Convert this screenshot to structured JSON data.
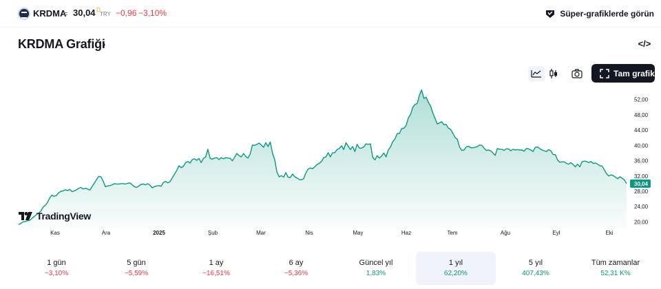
{
  "header": {
    "symbol": "KRDMA",
    "separator": "=",
    "price": "30,04",
    "price_flag": "D",
    "currency": "TRY",
    "change": "−0,96",
    "change_pct": "−3,10%",
    "super_link": "Süper-grafiklerde görün"
  },
  "title": "KRDMA Grafiği",
  "title_chevron": "›",
  "embed_label": "</>",
  "toolbar": {
    "full_chart": "Tam grafik"
  },
  "watermark": "TradingView",
  "colors": {
    "line": "#089981",
    "negative": "#f23645",
    "positive": "#089981",
    "price_label_bg": "#089981"
  },
  "chart_data": {
    "type": "area",
    "last_price_label": "30,04",
    "y_ticks": [
      "52,00",
      "48,00",
      "44,00",
      "40,00",
      "36,00",
      "32,00",
      "28,00",
      "24,00",
      "20,00"
    ],
    "y_tick_values": [
      52,
      48,
      44,
      40,
      36,
      32,
      28,
      24,
      20
    ],
    "x_ticks": [
      "Kas",
      "Ara",
      "2025",
      "Şub",
      "Mar",
      "Nis",
      "May",
      "Haz",
      "Tem",
      "Ağu",
      "Eyl",
      "Eki"
    ],
    "ylim": [
      19,
      55
    ],
    "grid": false,
    "values": [
      19.3,
      19.6,
      20.0,
      20.1,
      20.3,
      20.4,
      20.9,
      21.4,
      21.9,
      22.3,
      22.8,
      23.9,
      24.3,
      25.1,
      26.3,
      27.0,
      26.7,
      26.9,
      27.6,
      28.0,
      28.1,
      28.4,
      28.2,
      28.5,
      27.9,
      28.1,
      28.4,
      28.8,
      29.0,
      28.6,
      28.8,
      28.6,
      28.3,
      29.2,
      30.1,
      31.1,
      31.9,
      31.8,
      30.6,
      29.2,
      29.4,
      29.5,
      29.7,
      30.0,
      29.9,
      29.9,
      30.0,
      30.0,
      29.9,
      30.1,
      30.2,
      29.7,
      29.2,
      29.0,
      29.4,
      29.8,
      29.9,
      29.7,
      30.0,
      29.6,
      28.9,
      29.2,
      29.4,
      29.5,
      29.3,
      30.3,
      30.6,
      30.2,
      30.5,
      31.5,
      32.5,
      33.4,
      34.7,
      34.2,
      34.5,
      35.5,
      35.8,
      35.4,
      36.3,
      36.5,
      36.1,
      36.6,
      35.5,
      36.6,
      37.0,
      39.0,
      36.6,
      36.4,
      36.7,
      36.8,
      36.3,
      36.8,
      36.5,
      36.8,
      36.7,
      36.6,
      36.0,
      36.9,
      37.9,
      37.3,
      37.0,
      37.9,
      37.1,
      36.7,
      37.8,
      40.1,
      40.0,
      40.3,
      40.6,
      40.1,
      39.5,
      40.7,
      39.7,
      40.9,
      38.0,
      36.2,
      33.0,
      31.8,
      32.1,
      31.7,
      32.9,
      31.7,
      31.6,
      32.5,
      31.8,
      31.5,
      31.1,
      31.0,
      31.3,
      32.8,
      33.8,
      34.1,
      33.9,
      34.4,
      35.0,
      35.3,
      35.8,
      36.8,
      37.0,
      38.1,
      37.0,
      38.1,
      38.1,
      38.9,
      39.2,
      39.9,
      38.9,
      40.7,
      39.8,
      38.9,
      39.7,
      38.4,
      40.3,
      39.3,
      39.3,
      39.6,
      40.4,
      40.3,
      40.4,
      36.9,
      36.2,
      37.3,
      36.7,
      37.2,
      38.0,
      37.0,
      38.8,
      39.6,
      41.0,
      41.7,
      43.1,
      43.1,
      44.4,
      44.5,
      45.2,
      47.2,
      48.1,
      50.0,
      50.7,
      51.0,
      53.2,
      54.5,
      52.3,
      52.6,
      51.3,
      50.3,
      48.5,
      47.1,
      45.6,
      45.9,
      46.2,
      45.4,
      45.5,
      44.5,
      44.2,
      43.2,
      42.1,
      41.6,
      39.6,
      38.7,
      38.8,
      39.6,
      39.8,
      39.4,
      39.4,
      39.5,
      39.7,
      40.1,
      40.0,
      39.3,
      38.7,
      38.8,
      38.6,
      38.0,
      37.4,
      39.2,
      39.0,
      39.0,
      38.7,
      39.1,
      39.1,
      38.6,
      39.0,
      38.8,
      38.9,
      38.8,
      38.8,
      38.5,
      39.2,
      39.1,
      38.8,
      38.4,
      39.5,
      39.6,
      39.2,
      38.8,
      38.6,
      38.4,
      38.9,
      38.6,
      37.6,
      37.6,
      36.2,
      35.6,
      35.7,
      35.7,
      35.3,
      35.1,
      35.5,
      35.0,
      34.4,
      35.1,
      34.4,
      35.7,
      35.9,
      35.8,
      35.5,
      35.8,
      35.3,
      35.4,
      35.1,
      34.7,
      34.6,
      33.6,
      32.6,
      32.0,
      32.3,
      32.1,
      31.7,
      31.3,
      31.8,
      31.4,
      31.0,
      30.0
    ]
  },
  "periods": [
    {
      "label": "1 gün",
      "value": "−3,10%",
      "sign": "neg",
      "active": false
    },
    {
      "label": "5 gün",
      "value": "−5,59%",
      "sign": "neg",
      "active": false
    },
    {
      "label": "1 ay",
      "value": "−16,51%",
      "sign": "neg",
      "active": false
    },
    {
      "label": "6 ay",
      "value": "−5,36%",
      "sign": "neg",
      "active": false
    },
    {
      "label": "Güncel yıl",
      "value": "1,83%",
      "sign": "pos",
      "active": false
    },
    {
      "label": "1 yıl",
      "value": "62,20%",
      "sign": "pos",
      "active": true
    },
    {
      "label": "5 yıl",
      "value": "407,43%",
      "sign": "pos",
      "active": false
    },
    {
      "label": "Tüm zamanlar",
      "value": "52,31 K%",
      "sign": "pos",
      "active": false
    }
  ]
}
